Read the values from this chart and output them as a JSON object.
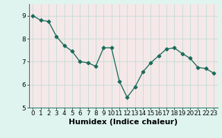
{
  "x": [
    0,
    1,
    2,
    3,
    4,
    5,
    6,
    7,
    8,
    9,
    10,
    11,
    12,
    13,
    14,
    15,
    16,
    17,
    18,
    19,
    20,
    21,
    22,
    23
  ],
  "y": [
    9.0,
    8.8,
    8.75,
    8.1,
    7.7,
    7.45,
    7.0,
    6.95,
    6.8,
    7.6,
    7.6,
    6.15,
    5.45,
    5.9,
    6.55,
    6.95,
    7.25,
    7.55,
    7.6,
    7.35,
    7.15,
    6.75,
    6.7,
    6.5
  ],
  "xlabel": "Humidex (Indice chaleur)",
  "ylim": [
    5,
    9.5
  ],
  "xlim": [
    -0.5,
    23.5
  ],
  "yticks": [
    5,
    6,
    7,
    8,
    9
  ],
  "xticks": [
    0,
    1,
    2,
    3,
    4,
    5,
    6,
    7,
    8,
    9,
    10,
    11,
    12,
    13,
    14,
    15,
    16,
    17,
    18,
    19,
    20,
    21,
    22,
    23
  ],
  "line_color": "#1a6b5a",
  "marker": "D",
  "marker_size": 2.5,
  "line_width": 1.0,
  "bg_color": "#dff4ee",
  "grid_color": "#c0ddd6",
  "plot_bg": "#f5e8e8",
  "xlabel_fontsize": 8,
  "tick_fontsize": 6.5,
  "fig_width": 3.2,
  "fig_height": 2.0,
  "dpi": 100
}
